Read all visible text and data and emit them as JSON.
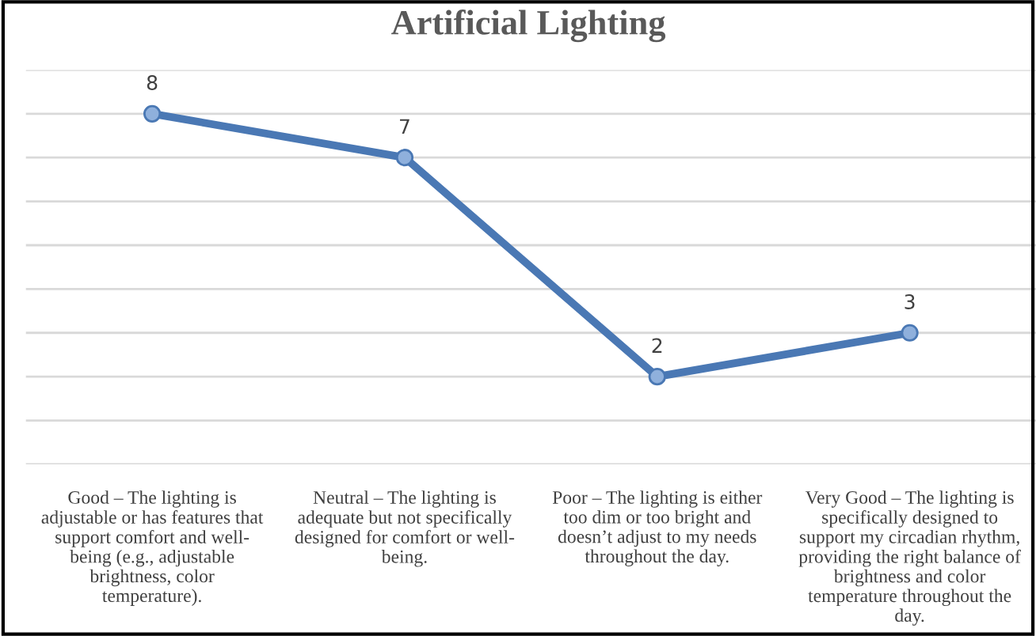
{
  "chart_data": {
    "type": "line",
    "title": "Artificial Lighting",
    "categories": [
      "Good – The lighting is\nadjustable or has features that\nsupport comfort and well-\nbeing (e.g., adjustable\nbrightness, color\ntemperature).",
      "Neutral – The lighting is\nadequate but not specifically\ndesigned for comfort or well-\nbeing.",
      "Poor – The lighting is either\ntoo dim or too bright and\ndoesn’t adjust to my needs\nthroughout the day.",
      "Very Good – The lighting is\nspecifically designed to\nsupport my circadian rhythm,\nproviding the right balance of\nbrightness and color\ntemperature throughout the\nday."
    ],
    "series": [
      {
        "color": "#4a78b4",
        "values": [
          8,
          7,
          2,
          3
        ]
      }
    ],
    "ylim": [
      0,
      9
    ],
    "yticks": [
      {
        "value": 0,
        "label": null
      },
      {
        "value": 1,
        "label": null
      },
      {
        "value": 2,
        "label": null
      },
      {
        "value": 3,
        "label": null
      },
      {
        "value": 4,
        "label": null
      },
      {
        "value": 5,
        "label": null
      },
      {
        "value": 6,
        "label": null
      },
      {
        "value": 7,
        "label": null
      },
      {
        "value": 8,
        "label": null
      },
      {
        "value": 9,
        "label": null
      }
    ],
    "tick_labels": "x",
    "grid": "y",
    "marker": "circle",
    "line_style": "solid",
    "data_labels": true
  }
}
